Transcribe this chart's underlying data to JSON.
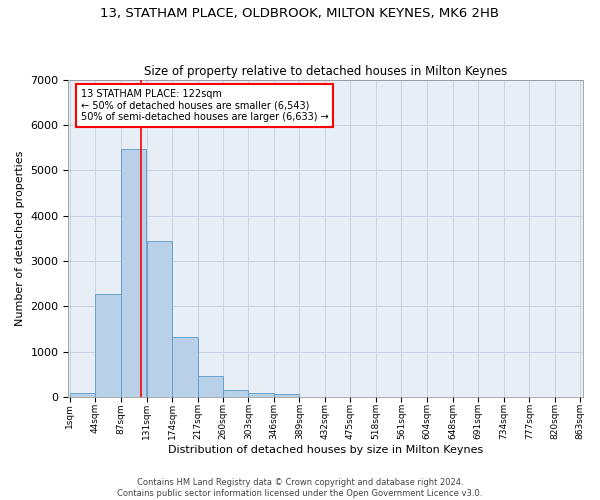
{
  "title": "13, STATHAM PLACE, OLDBROOK, MILTON KEYNES, MK6 2HB",
  "subtitle": "Size of property relative to detached houses in Milton Keynes",
  "xlabel": "Distribution of detached houses by size in Milton Keynes",
  "ylabel": "Number of detached properties",
  "footnote1": "Contains HM Land Registry data © Crown copyright and database right 2024.",
  "footnote2": "Contains public sector information licensed under the Open Government Licence v3.0.",
  "bar_color": "#b8d0e8",
  "bar_edge_color": "#5a9aca",
  "grid_color": "#c8d4e4",
  "background_color": "#e8eef6",
  "red_line_x": 122,
  "annotation_text": "13 STATHAM PLACE: 122sqm\n← 50% of detached houses are smaller (6,543)\n50% of semi-detached houses are larger (6,633) →",
  "bin_edges": [
    1,
    44,
    87,
    131,
    174,
    217,
    260,
    303,
    346,
    389,
    432,
    475,
    518,
    561,
    604,
    648,
    691,
    734,
    777,
    820,
    863
  ],
  "bin_values": [
    75,
    2280,
    5480,
    3450,
    1310,
    470,
    155,
    85,
    55,
    0,
    0,
    0,
    0,
    0,
    0,
    0,
    0,
    0,
    0,
    0
  ],
  "ylim": [
    0,
    7000
  ],
  "yticks": [
    0,
    1000,
    2000,
    3000,
    4000,
    5000,
    6000,
    7000
  ],
  "annotation_box_color": "white",
  "annotation_box_edge_color": "red"
}
